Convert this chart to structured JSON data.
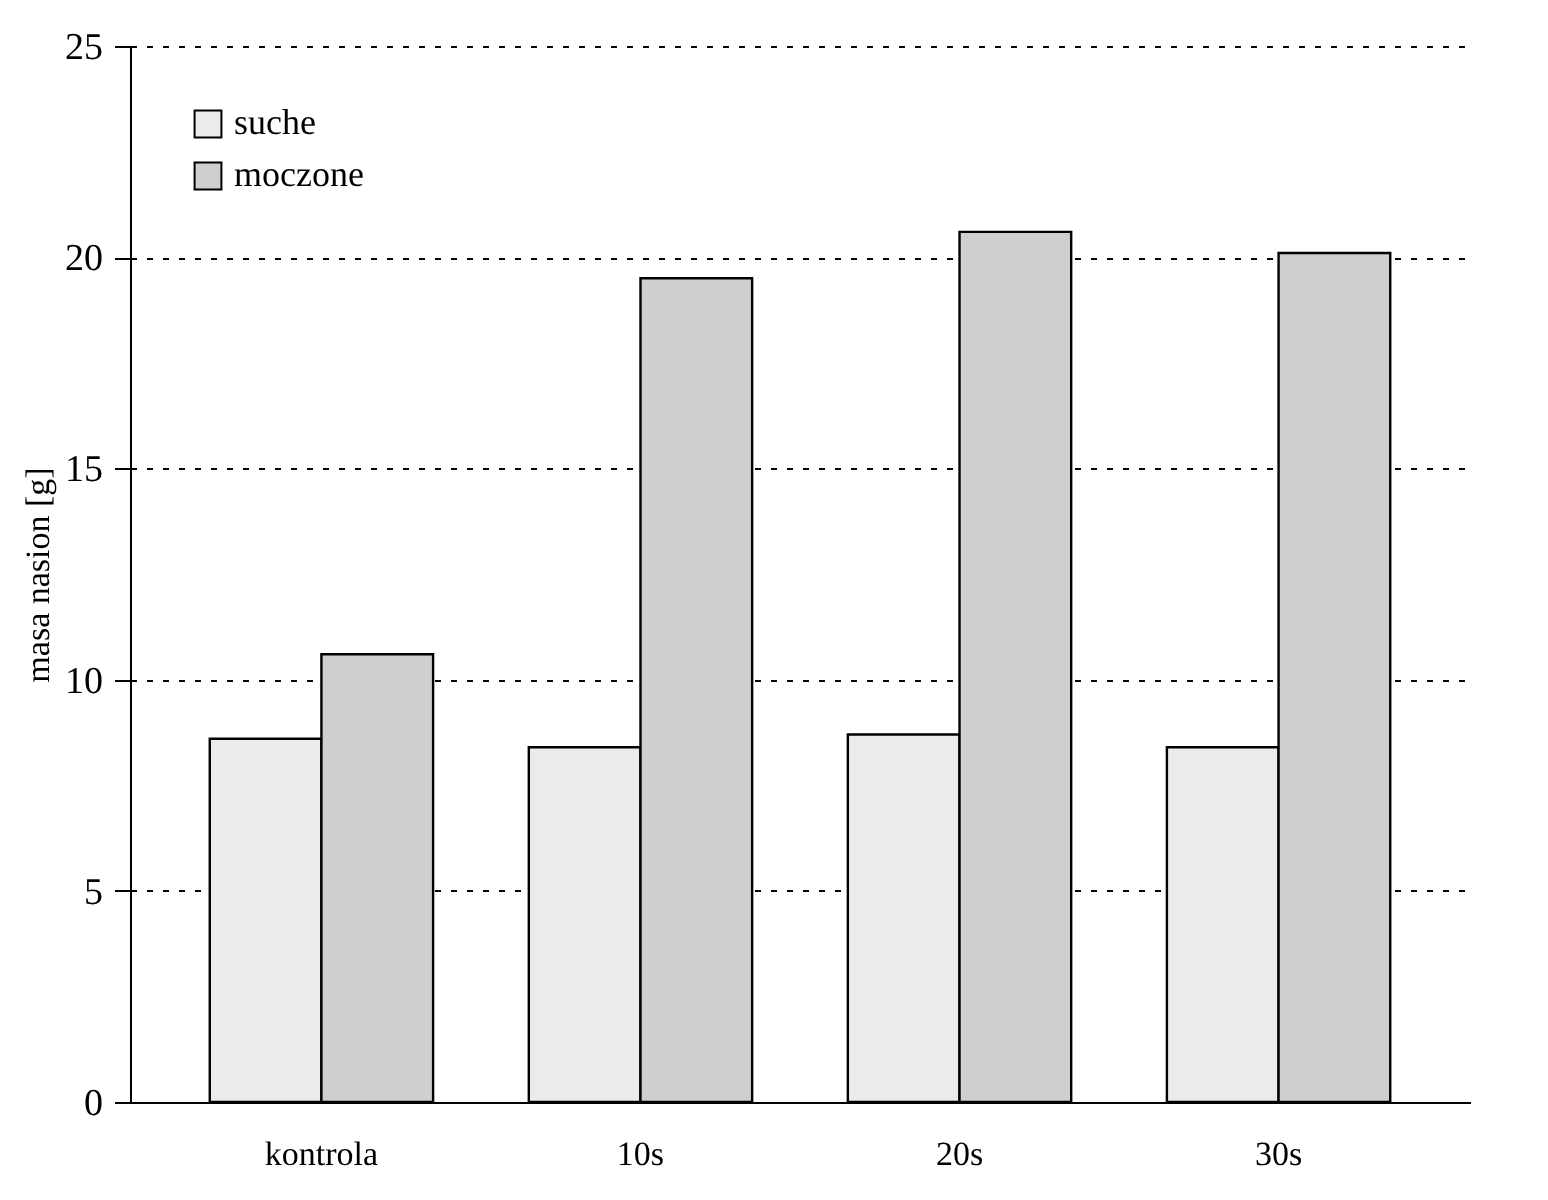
{
  "chart_data": {
    "type": "bar",
    "ylabel": "masa nasion [g]",
    "categories": [
      "kontrola",
      "10s",
      "20s",
      "30s"
    ],
    "series": [
      {
        "name": "suche",
        "color": "#ebebeb",
        "values": [
          8.6,
          8.4,
          8.7,
          8.4
        ]
      },
      {
        "name": "moczone",
        "color": "#cfcfcf",
        "values": [
          10.6,
          19.5,
          20.6,
          20.1
        ]
      }
    ],
    "ylim": [
      0,
      25
    ],
    "yticks": [
      0,
      5,
      10,
      15,
      20,
      25
    ],
    "grid": "y",
    "legend": "top left"
  }
}
